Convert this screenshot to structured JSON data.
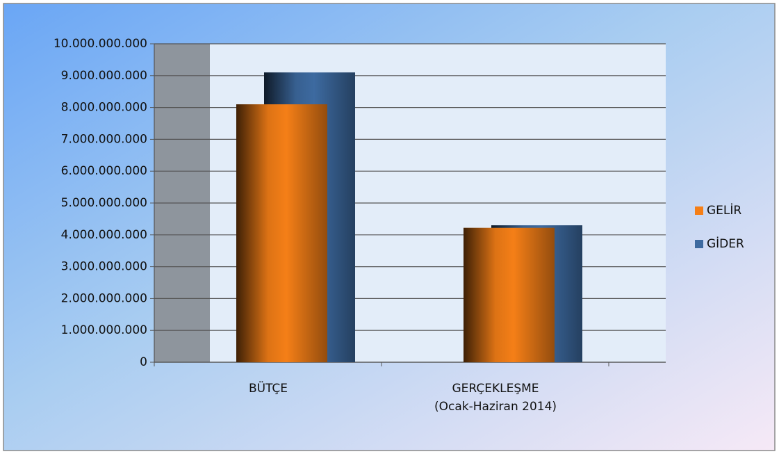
{
  "chart_data": {
    "type": "bar",
    "categories": [
      "BÜTÇE",
      "GERÇEKLEŞME\n(Ocak-Haziran 2014)"
    ],
    "series": [
      {
        "name": "GELİR",
        "color": "#f57f17",
        "values": [
          8100000000,
          4220000000
        ]
      },
      {
        "name": "GİDER",
        "color": "#3d6aa0",
        "values": [
          9100000000,
          4300000000
        ]
      }
    ],
    "ylim": [
      0,
      10000000000
    ],
    "yticks": [
      0,
      {
        "value": 1000000000,
        "label": "1.000.000.000"
      },
      {
        "value": 2000000000,
        "label": "2.000.000.000"
      },
      {
        "value": 3000000000,
        "label": "3.000.000.000"
      },
      {
        "value": 4000000000,
        "label": "4.000.000.000"
      },
      {
        "value": 5000000000,
        "label": "5.000.000.000"
      },
      {
        "value": 6000000000,
        "label": "6.000.000.000"
      },
      {
        "value": 7000000000,
        "label": "7.000.000.000"
      },
      {
        "value": 8000000000,
        "label": "8.000.000.000"
      },
      {
        "value": 9000000000,
        "label": "9.000.000.000"
      },
      {
        "value": 10000000000,
        "label": "10.000.000.000"
      }
    ],
    "grid": true,
    "legend": "right"
  }
}
